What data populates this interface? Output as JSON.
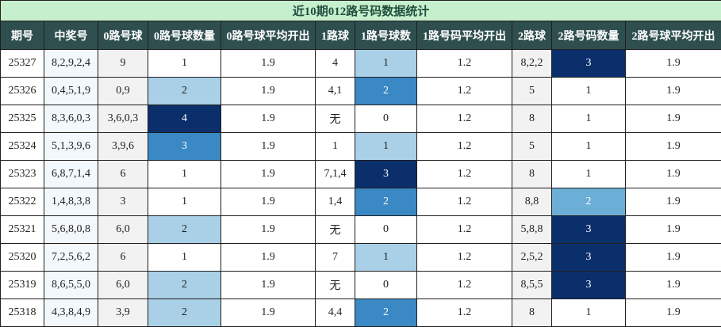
{
  "title": "近10期012路号码数据统计",
  "headers": [
    "期号",
    "中奖号",
    "0路号球",
    "0路号球数量",
    "0路号球平均开出",
    "1路球",
    "1路号球数",
    "1路号码平均开出",
    "2路球",
    "2路号码数量",
    "2路号球平均开出"
  ],
  "rows": [
    {
      "issue": "25327",
      "numbers": "8,2,9,2,4",
      "r0_balls": "9",
      "r0_count": "1",
      "r0_avg": "1.9",
      "r1_balls": "4",
      "r1_count": "1",
      "r1_avg": "1.2",
      "r2_balls": "8,2,2",
      "r2_count": "3",
      "r2_avg": "1.9"
    },
    {
      "issue": "25326",
      "numbers": "0,4,5,1,9",
      "r0_balls": "0,9",
      "r0_count": "2",
      "r0_avg": "1.9",
      "r1_balls": "4,1",
      "r1_count": "2",
      "r1_avg": "1.2",
      "r2_balls": "5",
      "r2_count": "1",
      "r2_avg": "1.9"
    },
    {
      "issue": "25325",
      "numbers": "8,3,6,0,3",
      "r0_balls": "3,6,0,3",
      "r0_count": "4",
      "r0_avg": "1.9",
      "r1_balls": "无",
      "r1_count": "0",
      "r1_avg": "1.2",
      "r2_balls": "8",
      "r2_count": "1",
      "r2_avg": "1.9"
    },
    {
      "issue": "25324",
      "numbers": "5,1,3,9,6",
      "r0_balls": "3,9,6",
      "r0_count": "3",
      "r0_avg": "1.9",
      "r1_balls": "1",
      "r1_count": "1",
      "r1_avg": "1.2",
      "r2_balls": "5",
      "r2_count": "1",
      "r2_avg": "1.9"
    },
    {
      "issue": "25323",
      "numbers": "6,8,7,1,4",
      "r0_balls": "6",
      "r0_count": "1",
      "r0_avg": "1.9",
      "r1_balls": "7,1,4",
      "r1_count": "3",
      "r1_avg": "1.2",
      "r2_balls": "8",
      "r2_count": "1",
      "r2_avg": "1.9"
    },
    {
      "issue": "25322",
      "numbers": "1,4,8,3,8",
      "r0_balls": "3",
      "r0_count": "1",
      "r0_avg": "1.9",
      "r1_balls": "1,4",
      "r1_count": "2",
      "r1_avg": "1.2",
      "r2_balls": "8,8",
      "r2_count": "2",
      "r2_avg": "1.9"
    },
    {
      "issue": "25321",
      "numbers": "5,6,8,0,8",
      "r0_balls": "6,0",
      "r0_count": "2",
      "r0_avg": "1.9",
      "r1_balls": "无",
      "r1_count": "0",
      "r1_avg": "1.2",
      "r2_balls": "5,8,8",
      "r2_count": "3",
      "r2_avg": "1.9"
    },
    {
      "issue": "25320",
      "numbers": "7,2,5,6,2",
      "r0_balls": "6",
      "r0_count": "1",
      "r0_avg": "1.9",
      "r1_balls": "7",
      "r1_count": "1",
      "r1_avg": "1.2",
      "r2_balls": "2,5,2",
      "r2_count": "3",
      "r2_avg": "1.9"
    },
    {
      "issue": "25319",
      "numbers": "8,6,5,5,0",
      "r0_balls": "6,0",
      "r0_count": "2",
      "r0_avg": "1.9",
      "r1_balls": "无",
      "r1_count": "0",
      "r1_avg": "1.2",
      "r2_balls": "8,5,5",
      "r2_count": "3",
      "r2_avg": "1.9"
    },
    {
      "issue": "25318",
      "numbers": "4,3,8,4,9",
      "r0_balls": "3,9",
      "r0_count": "2",
      "r0_avg": "1.9",
      "r1_balls": "4,4",
      "r1_count": "2",
      "r1_avg": "1.2",
      "r2_balls": "8",
      "r2_count": "1",
      "r2_avg": "1.9"
    }
  ],
  "cell_colors": {
    "r0_count": [
      "white",
      "light",
      "darkest",
      "mid",
      "white",
      "white",
      "light",
      "white",
      "light",
      "light"
    ],
    "r1_count": [
      "light",
      "mid",
      "white",
      "light",
      "darkest",
      "mid",
      "white",
      "light",
      "white",
      "mid"
    ],
    "r2_count": [
      "darkest",
      "white",
      "white",
      "white",
      "white",
      "mid-light",
      "darkest",
      "darkest",
      "darkest",
      "white"
    ]
  }
}
